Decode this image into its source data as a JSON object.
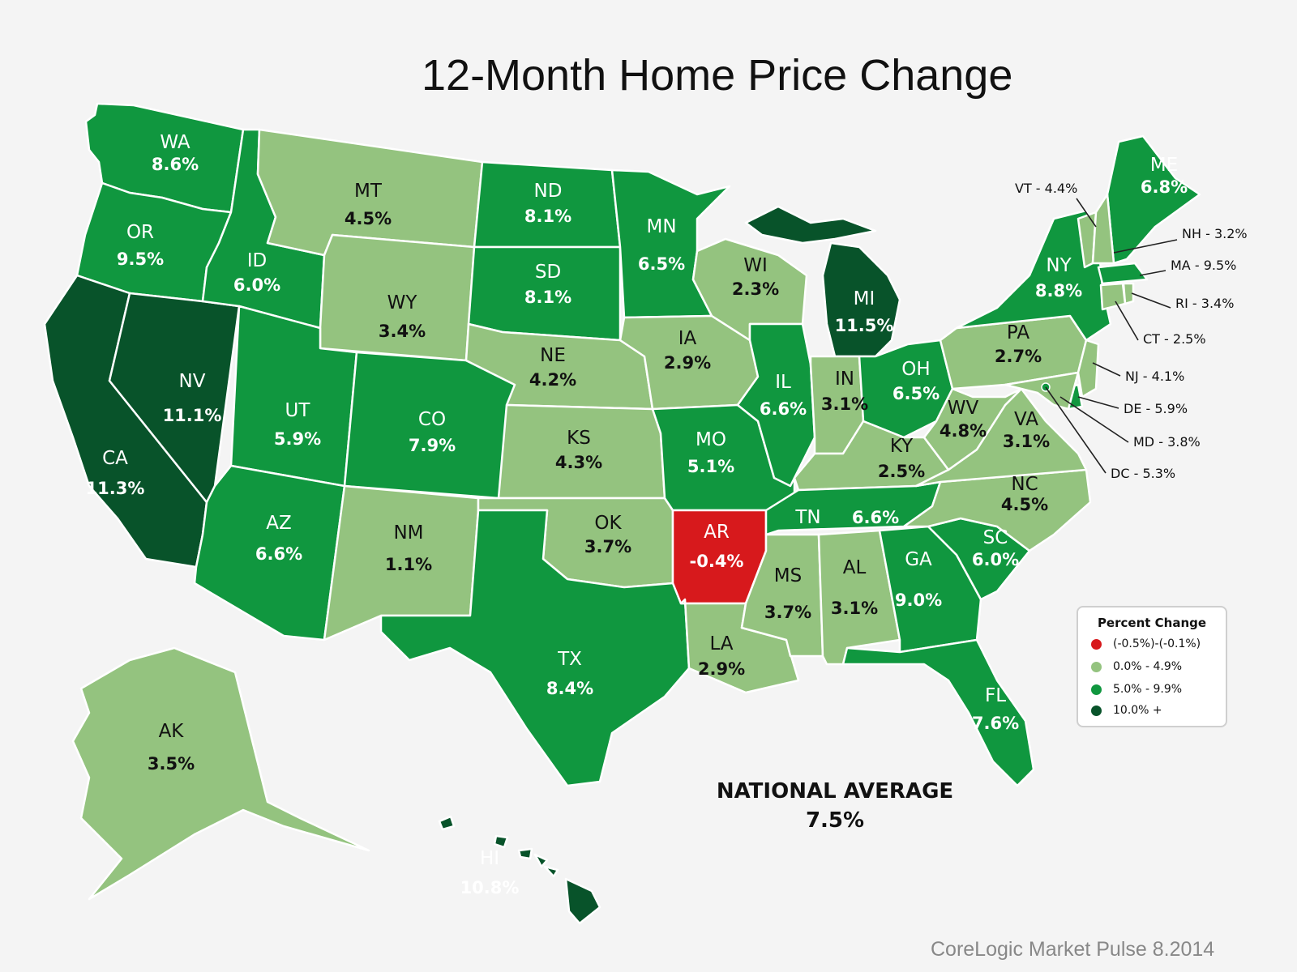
{
  "title": "12-Month Home Price Change",
  "national_average": {
    "label": "NATIONAL AVERAGE",
    "value": "7.5%"
  },
  "source": "CoreLogic Market Pulse 8.2014",
  "colors": {
    "negative": "#d7191c",
    "low": "#94c37f",
    "mid": "#10973f",
    "high": "#08532a"
  },
  "legend": {
    "title": "Percent Change",
    "items": [
      {
        "label": "(-0.5%)-(-0.1%)",
        "class": "negative"
      },
      {
        "label": "0.0% - 4.9%",
        "class": "low"
      },
      {
        "label": "5.0% - 9.9%",
        "class": "mid"
      },
      {
        "label": "10.0% +",
        "class": "high"
      }
    ]
  },
  "states": [
    {
      "code": "WA",
      "value": "8.6%",
      "class": "mid"
    },
    {
      "code": "OR",
      "value": "9.5%",
      "class": "mid"
    },
    {
      "code": "CA",
      "value": "11.3%",
      "class": "high"
    },
    {
      "code": "NV",
      "value": "11.1%",
      "class": "high"
    },
    {
      "code": "ID",
      "value": "6.0%",
      "class": "mid"
    },
    {
      "code": "MT",
      "value": "4.5%",
      "class": "low"
    },
    {
      "code": "WY",
      "value": "3.4%",
      "class": "low"
    },
    {
      "code": "UT",
      "value": "5.9%",
      "class": "mid"
    },
    {
      "code": "AZ",
      "value": "6.6%",
      "class": "mid"
    },
    {
      "code": "CO",
      "value": "7.9%",
      "class": "mid"
    },
    {
      "code": "NM",
      "value": "1.1%",
      "class": "low"
    },
    {
      "code": "ND",
      "value": "8.1%",
      "class": "mid"
    },
    {
      "code": "SD",
      "value": "8.1%",
      "class": "mid"
    },
    {
      "code": "NE",
      "value": "4.2%",
      "class": "low"
    },
    {
      "code": "KS",
      "value": "4.3%",
      "class": "low"
    },
    {
      "code": "OK",
      "value": "3.7%",
      "class": "low"
    },
    {
      "code": "TX",
      "value": "8.4%",
      "class": "mid"
    },
    {
      "code": "MN",
      "value": "6.5%",
      "class": "mid"
    },
    {
      "code": "IA",
      "value": "2.9%",
      "class": "low"
    },
    {
      "code": "MO",
      "value": "5.1%",
      "class": "mid"
    },
    {
      "code": "AR",
      "value": "-0.4%",
      "class": "negative"
    },
    {
      "code": "LA",
      "value": "2.9%",
      "class": "low"
    },
    {
      "code": "WI",
      "value": "2.3%",
      "class": "low"
    },
    {
      "code": "IL",
      "value": "6.6%",
      "class": "mid"
    },
    {
      "code": "MI",
      "value": "11.5%",
      "class": "high"
    },
    {
      "code": "IN",
      "value": "3.1%",
      "class": "low"
    },
    {
      "code": "OH",
      "value": "6.5%",
      "class": "mid"
    },
    {
      "code": "KY",
      "value": "2.5%",
      "class": "low"
    },
    {
      "code": "TN",
      "value": "6.6%",
      "class": "mid"
    },
    {
      "code": "MS",
      "value": "3.7%",
      "class": "low"
    },
    {
      "code": "AL",
      "value": "3.1%",
      "class": "low"
    },
    {
      "code": "GA",
      "value": "9.0%",
      "class": "mid"
    },
    {
      "code": "FL",
      "value": "7.6%",
      "class": "mid"
    },
    {
      "code": "SC",
      "value": "6.0%",
      "class": "mid"
    },
    {
      "code": "NC",
      "value": "4.5%",
      "class": "low"
    },
    {
      "code": "VA",
      "value": "3.1%",
      "class": "low"
    },
    {
      "code": "WV",
      "value": "4.8%",
      "class": "low"
    },
    {
      "code": "PA",
      "value": "2.7%",
      "class": "low"
    },
    {
      "code": "NY",
      "value": "8.8%",
      "class": "mid"
    },
    {
      "code": "ME",
      "value": "6.8%",
      "class": "mid"
    },
    {
      "code": "AK",
      "value": "3.5%",
      "class": "low"
    },
    {
      "code": "HI",
      "value": "10.8%",
      "class": "high"
    }
  ],
  "callouts": [
    {
      "code": "VT",
      "value": "4.4%",
      "class": "low"
    },
    {
      "code": "NH",
      "value": "3.2%",
      "class": "low"
    },
    {
      "code": "MA",
      "value": "9.5%",
      "class": "mid"
    },
    {
      "code": "RI",
      "value": "3.4%",
      "class": "low"
    },
    {
      "code": "CT",
      "value": "2.5%",
      "class": "low"
    },
    {
      "code": "NJ",
      "value": "4.1%",
      "class": "low"
    },
    {
      "code": "DE",
      "value": "5.9%",
      "class": "mid"
    },
    {
      "code": "MD",
      "value": "3.8%",
      "class": "low"
    },
    {
      "code": "DC",
      "value": "5.3%",
      "class": "mid"
    }
  ]
}
